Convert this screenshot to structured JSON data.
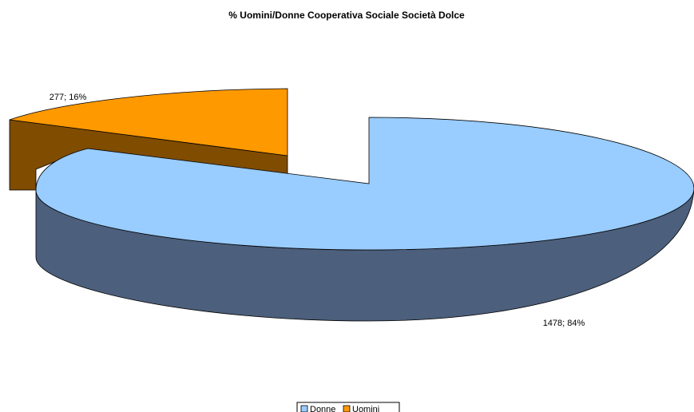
{
  "chart_data": {
    "type": "pie",
    "title": "% Uomini/Donne Cooperativa Sociale Società Dolce",
    "slices": [
      {
        "name": "Donne",
        "value": 1478,
        "percent": 84,
        "label": "1478; 84%",
        "color": "#99ccff",
        "side_color": "#4c5f7c"
      },
      {
        "name": "Uomini",
        "value": 277,
        "percent": 16,
        "label": "277; 16%",
        "color": "#ff9900",
        "side_color": "#7f4c00"
      }
    ],
    "legend": {
      "position": "bottom",
      "entries": [
        "Donne",
        "Uomini"
      ]
    },
    "style": "3d-exploded"
  }
}
